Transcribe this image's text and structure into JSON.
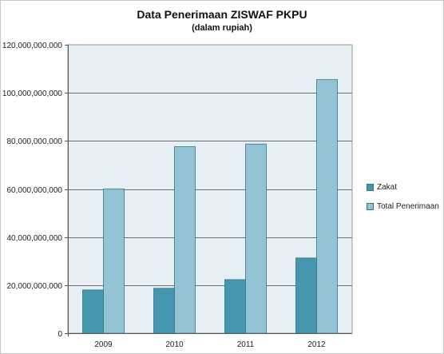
{
  "chart_data": {
    "type": "bar",
    "title": "Data Penerimaan ZISWAF PKPU",
    "subtitle": "(dalam rupiah)",
    "categories": [
      "2009",
      "2010",
      "2011",
      "2012"
    ],
    "series": [
      {
        "name": "Zakat",
        "values": [
          18000000000,
          18700000000,
          22300000000,
          31300000000
        ]
      },
      {
        "name": "Total Penerimaan",
        "values": [
          60000000000,
          77600000000,
          78700000000,
          105500000000
        ]
      }
    ],
    "y_ticks": [
      "0",
      "20,000,000,000",
      "40,000,000,000",
      "60,000,000,000",
      "80,000,000,000",
      "100,000,000,000",
      "120,000,000,000"
    ],
    "ylim": [
      0,
      120000000000
    ],
    "grid": true,
    "legend_position": "right",
    "colors": {
      "Zakat": "#4596af",
      "Total Penerimaan": "#93c4d6",
      "plot_bg": "#e6eff3",
      "grid": "#6e6e6e"
    }
  }
}
